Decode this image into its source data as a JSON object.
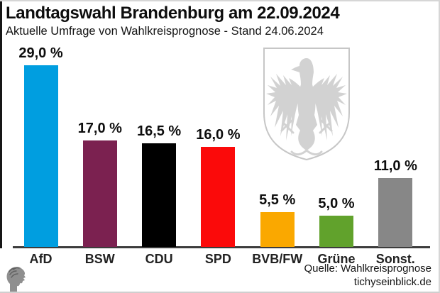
{
  "header": {
    "title": "Landtagswahl Brandenburg am 22.09.2024",
    "subtitle": "Aktuelle Umfrage von Wahlkreisprognose - Stand 24.06.2024"
  },
  "chart_data": {
    "type": "bar",
    "title": "Landtagswahl Brandenburg am 22.09.2024",
    "subtitle": "Aktuelle Umfrage von Wahlkreisprognose - Stand 24.06.2024",
    "categories": [
      "AfD",
      "BSW",
      "CDU",
      "SPD",
      "BVB/FW",
      "Grüne",
      "Sonst."
    ],
    "values": [
      29.0,
      17.0,
      16.5,
      16.0,
      5.5,
      5.0,
      11.0
    ],
    "value_labels": [
      "29,0 %",
      "17,0 %",
      "16,5 %",
      "16,0 %",
      "5,5 %",
      "5,0 %",
      "11,0 %"
    ],
    "bar_colors": [
      "#009ee0",
      "#7b2150",
      "#000000",
      "#fb0a0a",
      "#faa800",
      "#61a22c",
      "#878787"
    ],
    "xlabel": "",
    "ylabel": "",
    "ylim": [
      0,
      30
    ],
    "grid": false,
    "legend": false,
    "unit": "%"
  },
  "watermark": {
    "icon": "brandenburg-eagle-coat-of-arms",
    "color": "#d2d2d2",
    "outline_color": "#c6c6c6"
  },
  "branding": {
    "icon": "tichys-einblick-head-profile",
    "color": "#8f8f8f"
  },
  "footer": {
    "source_line1": "Quelle: Wahlkreisprognose",
    "source_line2": "tichyseinblick.de"
  },
  "style_colors": {
    "axis": "#3c3c3c",
    "text": "#0d0d0d",
    "background": "#ffffff"
  }
}
